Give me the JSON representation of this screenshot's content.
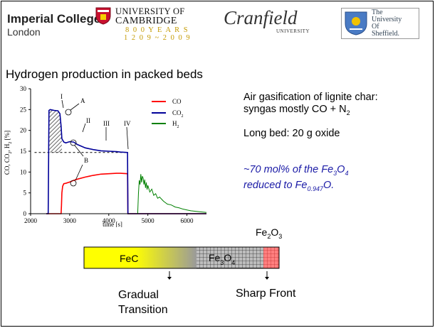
{
  "header": {
    "imperial": {
      "line1": "Imperial College",
      "line2": "London"
    },
    "cambridge": {
      "line1": "UNIVERSITY OF",
      "line2": "CAMBRIDGE",
      "years1": "8 0 0  Y E A R S",
      "years2": "1 2 0 9 ~ 2 0 0 9"
    },
    "cranfield": {
      "name": "Cranfield",
      "sub": "UNIVERSITY"
    },
    "sheffield": {
      "line1": "The",
      "line2": "University",
      "line3": "Of",
      "line4": "Sheffield."
    }
  },
  "slide": {
    "title": "Hydrogen production in packed beds",
    "text1_line1": "Air gasification of lignite char:",
    "text1_line2_a": "syngas mostly CO + N",
    "text1_line2_sub": "2",
    "text2": "Long bed: 20 g oxide",
    "italic": {
      "l1_a": "~70 mol% of the Fe",
      "l1_sub1": "3",
      "l1_b": "O",
      "l1_sub2": "4",
      "l2_a": "reduced to Fe",
      "l2_sub": "0.947",
      "l2_b": "O."
    }
  },
  "chart_data": {
    "type": "line",
    "xlabel": "time [s]",
    "ylabel_parts": {
      "a": "CO, CO",
      "sub1": "2",
      "b": ", H",
      "sub2": "2",
      "c": " [%]"
    },
    "xlim": [
      2000,
      6500
    ],
    "ylim": [
      0,
      30
    ],
    "xticks": [
      2000,
      3000,
      4000,
      5000,
      6000
    ],
    "yticks": [
      0,
      5,
      10,
      15,
      20,
      25,
      30
    ],
    "series": [
      {
        "name": "CO",
        "color": "#ff0000",
        "x": [
          2400,
          2780,
          2790,
          2800,
          2820,
          2850,
          2900,
          3000,
          3100,
          3200,
          3400,
          3600,
          3800,
          4000,
          4200,
          4300,
          4480,
          4490,
          4600,
          6500
        ],
        "y": [
          0,
          0,
          2,
          5,
          6.6,
          7.2,
          7.3,
          7.6,
          8.0,
          8.3,
          8.8,
          9.2,
          9.5,
          9.6,
          9.7,
          9.7,
          9.6,
          0,
          0,
          0
        ]
      },
      {
        "name": "CO2",
        "legend_parts": {
          "a": "CO",
          "sub": "2"
        },
        "color": "#000099",
        "x": [
          2400,
          2450,
          2470,
          2500,
          2550,
          2600,
          2700,
          2750,
          2780,
          2800,
          2850,
          2900,
          3000,
          3100,
          3200,
          3400,
          3600,
          3800,
          4000,
          4200,
          4300,
          4480,
          4490,
          4600,
          6500
        ],
        "y": [
          0,
          0,
          24.8,
          25.0,
          24.9,
          24.8,
          24.7,
          24.0,
          21.0,
          18.0,
          17.2,
          17.0,
          17.3,
          17.2,
          16.6,
          15.8,
          15.4,
          15.1,
          15.0,
          14.9,
          14.8,
          14.7,
          0,
          0,
          0
        ]
      },
      {
        "name": "H2",
        "legend_parts": {
          "a": "H",
          "sub": "2"
        },
        "color": "#008000",
        "x": [
          4600,
          4740,
          4760,
          4780,
          4800,
          4820,
          4840,
          4860,
          4880,
          4900,
          4920,
          4940,
          4960,
          4980,
          5000,
          5050,
          5100,
          5150,
          5200,
          5250,
          5300,
          5400,
          5500,
          5600,
          5700,
          5800,
          5900,
          6000,
          6100,
          6200,
          6300,
          6500
        ],
        "y": [
          0,
          0,
          5,
          8,
          7,
          9.5,
          7.5,
          9,
          8.5,
          7,
          8.2,
          6.2,
          7.5,
          5.8,
          6.8,
          5.2,
          5.9,
          4.4,
          4.8,
          3.7,
          4.0,
          3.0,
          2.3,
          2.1,
          1.6,
          1.4,
          1.1,
          0.9,
          0.7,
          0.6,
          0.5,
          0.3
        ]
      }
    ],
    "reference_line_y": 14.7,
    "annotations": [
      "I",
      "A",
      "II",
      "III",
      "IV",
      "B"
    ],
    "legend_position": "top-right"
  },
  "bed": {
    "fec_label": "FeC",
    "fe3o4_label": {
      "a": "Fe",
      "sub1": "3",
      "b": "O",
      "sub2": "4"
    },
    "fe2o3_label": {
      "a": "Fe",
      "sub1": "2",
      "b": "O",
      "sub2": "3"
    },
    "gradual_line1": "Gradual",
    "gradual_line2": "Transition",
    "sharp": "Sharp Front"
  },
  "colors": {
    "fec": "#ffff00",
    "fe2o3": "#ff7f7f",
    "co": "#ff0000",
    "co2": "#000099",
    "h2": "#008000"
  }
}
